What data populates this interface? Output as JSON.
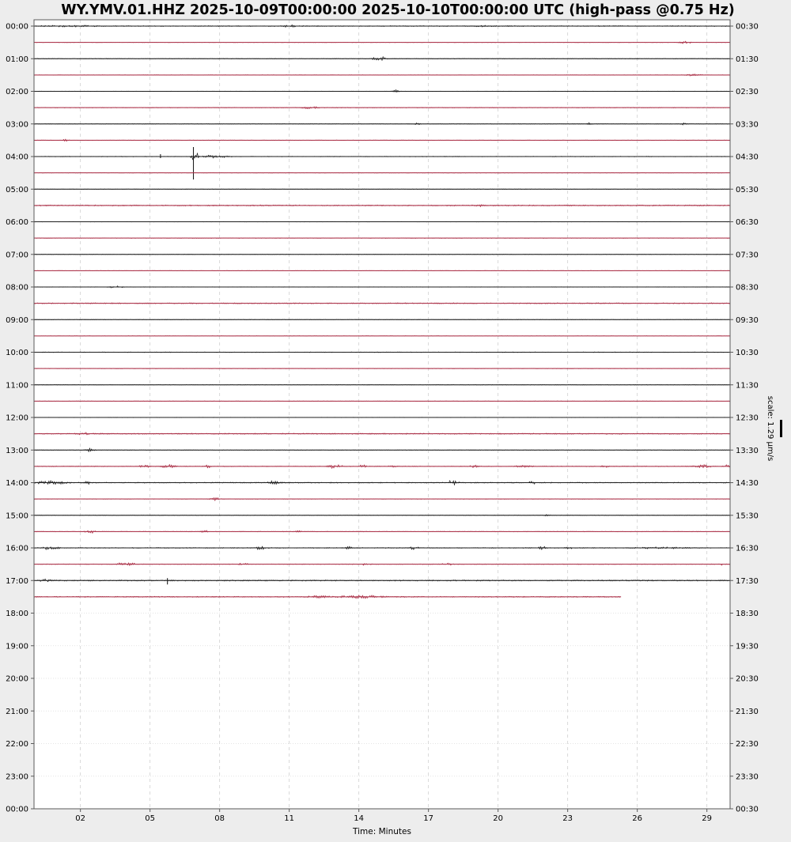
{
  "header": {
    "title": "WY.YMV.01.HHZ 2025-10-09T00:00:00 2025-10-10T00:00:00 UTC (high-pass @0.75 Hz)"
  },
  "chart_data": {
    "type": "helicorder",
    "title": "WY.YMV.01.HHZ 2025-10-09T00:00:00 2025-10-10T00:00:00 UTC (high-pass @0.75 Hz)",
    "xlabel": "Time: Minutes",
    "scale_label": "scale: 1.29 µm/s",
    "x_range": [
      0,
      30
    ],
    "minutes_per_row": 30,
    "x_ticks": [
      {
        "minute": 2,
        "label": "02"
      },
      {
        "minute": 5,
        "label": "05"
      },
      {
        "minute": 8,
        "label": "08"
      },
      {
        "minute": 11,
        "label": "11"
      },
      {
        "minute": 14,
        "label": "14"
      },
      {
        "minute": 17,
        "label": "17"
      },
      {
        "minute": 20,
        "label": "20"
      },
      {
        "minute": 23,
        "label": "23"
      },
      {
        "minute": 26,
        "label": "26"
      },
      {
        "minute": 29,
        "label": "29"
      }
    ],
    "left_axis_labels": [
      "00:00",
      "01:00",
      "02:00",
      "03:00",
      "04:00",
      "05:00",
      "06:00",
      "07:00",
      "08:00",
      "09:00",
      "10:00",
      "11:00",
      "12:00",
      "13:00",
      "14:00",
      "15:00",
      "16:00",
      "17:00",
      "18:00",
      "19:00",
      "20:00",
      "21:00",
      "22:00",
      "23:00",
      "00:00"
    ],
    "right_axis_labels": [
      "00:30",
      "01:30",
      "02:30",
      "03:30",
      "04:30",
      "05:30",
      "06:30",
      "07:30",
      "08:30",
      "09:30",
      "10:30",
      "11:30",
      "12:30",
      "13:30",
      "14:30",
      "15:30",
      "16:30",
      "17:30",
      "18:30",
      "19:30",
      "20:30",
      "21:30",
      "22:30",
      "23:30",
      "00:30"
    ],
    "colors": {
      "black_trace": "#1f1f1f",
      "red_trace": "#ab3148",
      "plot_bg": "#ffffff",
      "page_bg": "#ededed",
      "border": "#5a5a5a",
      "grid_vertical": "#cfcfcf",
      "grid_horizontal": "#dcdcdc"
    },
    "legend_position": "right",
    "grid": true,
    "rows": [
      {
        "start": "00:00",
        "color": "black",
        "noise": 0.6,
        "events": [
          [
            0.4,
            2.6,
            0.8
          ],
          [
            10.8,
            0.5,
            2.5
          ],
          [
            18.8,
            1.2,
            0.6
          ]
        ],
        "spikes": []
      },
      {
        "start": "00:30",
        "color": "red",
        "noise": 0.3,
        "events": [
          [
            27.8,
            0.6,
            1.8
          ]
        ],
        "spikes": []
      },
      {
        "start": "01:00",
        "color": "black",
        "noise": 0.45,
        "events": [
          [
            14.6,
            0.7,
            2.8
          ]
        ],
        "spikes": []
      },
      {
        "start": "01:30",
        "color": "red",
        "noise": 0.3,
        "events": [
          [
            28.1,
            0.8,
            1.2
          ]
        ],
        "spikes": []
      },
      {
        "start": "02:00",
        "color": "black",
        "noise": 0.35,
        "events": [
          [
            15.3,
            0.5,
            2.2
          ]
        ],
        "spikes": []
      },
      {
        "start": "02:30",
        "color": "red",
        "noise": 0.45,
        "events": [
          [
            11.5,
            1.0,
            1.3
          ]
        ],
        "spikes": []
      },
      {
        "start": "03:00",
        "color": "black",
        "noise": 0.35,
        "events": [
          [
            16.4,
            0.3,
            1.2
          ],
          [
            23.8,
            0.3,
            1.4
          ],
          [
            27.9,
            0.3,
            1.4
          ]
        ],
        "spikes": []
      },
      {
        "start": "03:30",
        "color": "red",
        "noise": 0.3,
        "events": [
          [
            1.25,
            0.3,
            1.8
          ]
        ],
        "spikes": []
      },
      {
        "start": "04:00",
        "color": "black",
        "noise": 0.4,
        "events": [
          [
            6.75,
            0.45,
            5.0
          ],
          [
            7.2,
            1.4,
            1.8
          ]
        ],
        "spikes": [
          [
            5.45,
            3,
            2
          ],
          [
            6.87,
            12,
            29
          ]
        ]
      },
      {
        "start": "04:30",
        "color": "red",
        "noise": 0.3,
        "events": [],
        "spikes": []
      },
      {
        "start": "05:00",
        "color": "black",
        "noise": 0.3,
        "events": [],
        "spikes": []
      },
      {
        "start": "05:30",
        "color": "red",
        "noise": 0.75,
        "events": [
          [
            19.1,
            0.3,
            1.2
          ]
        ],
        "spikes": []
      },
      {
        "start": "06:00",
        "color": "black",
        "noise": 0.3,
        "events": [],
        "spikes": []
      },
      {
        "start": "06:30",
        "color": "red",
        "noise": 0.35,
        "events": [],
        "spikes": []
      },
      {
        "start": "07:00",
        "color": "black",
        "noise": 0.3,
        "events": [],
        "spikes": []
      },
      {
        "start": "07:30",
        "color": "red",
        "noise": 0.3,
        "events": [],
        "spikes": []
      },
      {
        "start": "08:00",
        "color": "black",
        "noise": 0.35,
        "events": [
          [
            3.2,
            0.8,
            1.3
          ]
        ],
        "spikes": []
      },
      {
        "start": "08:30",
        "color": "red",
        "noise": 0.7,
        "events": [],
        "spikes": []
      },
      {
        "start": "09:00",
        "color": "black",
        "noise": 0.3,
        "events": [],
        "spikes": []
      },
      {
        "start": "09:30",
        "color": "red",
        "noise": 0.3,
        "events": [],
        "spikes": []
      },
      {
        "start": "10:00",
        "color": "black",
        "noise": 0.4,
        "events": [],
        "spikes": []
      },
      {
        "start": "10:30",
        "color": "red",
        "noise": 0.3,
        "events": [],
        "spikes": []
      },
      {
        "start": "11:00",
        "color": "black",
        "noise": 0.3,
        "events": [],
        "spikes": []
      },
      {
        "start": "11:30",
        "color": "red",
        "noise": 0.3,
        "events": [],
        "spikes": []
      },
      {
        "start": "12:00",
        "color": "black",
        "noise": 0.3,
        "events": [],
        "spikes": []
      },
      {
        "start": "12:30",
        "color": "red",
        "noise": 0.75,
        "events": [
          [
            1.9,
            0.7,
            1.2
          ]
        ],
        "spikes": []
      },
      {
        "start": "13:00",
        "color": "black",
        "noise": 0.4,
        "events": [
          [
            2.2,
            0.5,
            2.5
          ]
        ],
        "spikes": []
      },
      {
        "start": "13:30",
        "color": "red",
        "noise": 0.5,
        "events": [
          [
            4.55,
            0.5,
            2.2
          ],
          [
            5.5,
            0.7,
            2.6
          ],
          [
            7.35,
            0.4,
            1.6
          ],
          [
            12.6,
            0.8,
            2.4
          ],
          [
            14.0,
            0.4,
            1.8
          ],
          [
            15.3,
            0.4,
            1.4
          ],
          [
            18.8,
            0.4,
            1.6
          ],
          [
            20.8,
            0.9,
            1.8
          ],
          [
            24.4,
            0.4,
            1.4
          ],
          [
            28.4,
            0.9,
            2.4
          ],
          [
            29.7,
            0.3,
            2.0
          ]
        ],
        "spikes": []
      },
      {
        "start": "14:00",
        "color": "black",
        "noise": 0.6,
        "events": [
          [
            0.1,
            1.6,
            2.2
          ],
          [
            2.1,
            0.4,
            2.2
          ],
          [
            10.0,
            0.8,
            2.6
          ],
          [
            17.8,
            0.6,
            3.0
          ],
          [
            21.3,
            0.4,
            1.6
          ]
        ],
        "spikes": []
      },
      {
        "start": "14:30",
        "color": "red",
        "noise": 0.35,
        "events": [
          [
            7.6,
            0.5,
            2.0
          ]
        ],
        "spikes": []
      },
      {
        "start": "15:00",
        "color": "black",
        "noise": 0.35,
        "events": [
          [
            22.0,
            0.3,
            1.0
          ]
        ],
        "spikes": []
      },
      {
        "start": "15:30",
        "color": "red",
        "noise": 0.4,
        "events": [
          [
            2.2,
            0.5,
            2.4
          ],
          [
            7.2,
            0.4,
            1.8
          ],
          [
            11.2,
            0.4,
            1.4
          ]
        ],
        "spikes": []
      },
      {
        "start": "16:00",
        "color": "black",
        "noise": 0.55,
        "events": [
          [
            0.4,
            0.8,
            2.8
          ],
          [
            9.5,
            0.8,
            2.4
          ],
          [
            13.4,
            0.4,
            1.8
          ],
          [
            16.2,
            0.5,
            2.4
          ],
          [
            21.7,
            0.5,
            2.4
          ],
          [
            22.9,
            0.4,
            1.4
          ],
          [
            26.0,
            2.5,
            0.8
          ]
        ],
        "spikes": []
      },
      {
        "start": "16:30",
        "color": "red",
        "noise": 0.45,
        "events": [
          [
            3.6,
            0.9,
            2.6
          ],
          [
            8.8,
            0.5,
            1.4
          ],
          [
            14.1,
            0.5,
            1.4
          ],
          [
            17.6,
            0.5,
            1.4
          ],
          [
            29.5,
            0.4,
            1.0
          ]
        ],
        "spikes": []
      },
      {
        "start": "17:00",
        "color": "black",
        "noise": 0.8,
        "events": [
          [
            0.3,
            0.5,
            1.8
          ]
        ],
        "spikes": [
          [
            5.75,
            3,
            5
          ]
        ]
      },
      {
        "start": "17:30",
        "color": "red",
        "noise": 0.7,
        "end_minute": 25.3,
        "events": [
          [
            11.8,
            1.2,
            1.4
          ],
          [
            13.2,
            2.2,
            2.0
          ]
        ],
        "spikes": []
      }
    ]
  }
}
